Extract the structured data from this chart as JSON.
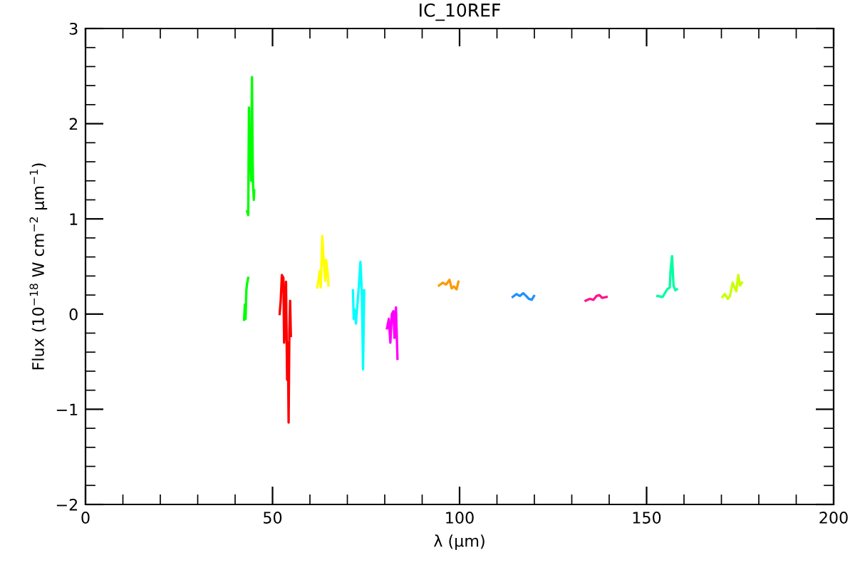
{
  "chart_data": {
    "type": "line",
    "title": "IC_10REF",
    "xlabel": "λ (μm)",
    "ylabel": "Flux (10$^{−18}$ W cm$^{−2}$ μm$^{−1}$)",
    "xlim": [
      0,
      200
    ],
    "ylim": [
      -2,
      3
    ],
    "xticks": [
      0,
      {
        "value": 10,
        "label": null
      },
      {
        "value": 20,
        "label": null
      },
      {
        "value": 30,
        "label": null
      },
      {
        "value": 40,
        "label": null
      },
      50,
      {
        "value": 60,
        "label": null
      },
      {
        "value": 70,
        "label": null
      },
      {
        "value": 80,
        "label": null
      },
      {
        "value": 90,
        "label": null
      },
      100,
      {
        "value": 110,
        "label": null
      },
      {
        "value": 120,
        "label": null
      },
      {
        "value": 130,
        "label": null
      },
      {
        "value": 140,
        "label": null
      },
      150,
      {
        "value": 160,
        "label": null
      },
      {
        "value": 170,
        "label": null
      },
      {
        "value": 180,
        "label": null
      },
      {
        "value": 190,
        "label": null
      },
      200
    ],
    "yticks": [
      {
        "value": -2,
        "label": "−2"
      },
      {
        "value": -1.8,
        "label": null
      },
      {
        "value": -1.6,
        "label": null
      },
      {
        "value": -1.4,
        "label": null
      },
      {
        "value": -1.2,
        "label": null
      },
      {
        "value": -1,
        "label": "−1"
      },
      {
        "value": -0.8,
        "label": null
      },
      {
        "value": -0.6,
        "label": null
      },
      {
        "value": -0.4,
        "label": null
      },
      {
        "value": -0.2,
        "label": null
      },
      0,
      {
        "value": 0.2,
        "label": null
      },
      {
        "value": 0.4,
        "label": null
      },
      {
        "value": 0.6,
        "label": null
      },
      {
        "value": 0.8,
        "label": null
      },
      1,
      {
        "value": 1.2,
        "label": null
      },
      {
        "value": 1.4,
        "label": null
      },
      {
        "value": 1.6,
        "label": null
      },
      {
        "value": 1.8,
        "label": null
      },
      2,
      {
        "value": 2.2,
        "label": null
      },
      {
        "value": 2.4,
        "label": null
      },
      {
        "value": 2.6,
        "label": null
      },
      {
        "value": 2.8,
        "label": null
      },
      3
    ],
    "grid": false,
    "marker": "none",
    "line_style": "solid",
    "series": [
      {
        "color": "#00ff00",
        "x": [
          43.2,
          43.5,
          43.7,
          43.9,
          44.1,
          44.3,
          44.5,
          44.7,
          44.8,
          45.0,
          45.1
        ],
        "values": [
          1.08,
          1.04,
          2.17,
          1.5,
          1.77,
          1.4,
          2.49,
          1.6,
          1.35,
          1.2,
          1.3
        ]
      },
      {
        "color": "#00ff00",
        "x": [
          42.4,
          42.6,
          42.8,
          43.0,
          43.2,
          43.5
        ],
        "values": [
          -0.06,
          0.1,
          -0.05,
          0.25,
          0.32,
          0.38
        ]
      },
      {
        "color": "#ff0000",
        "x": [
          51.9,
          52.2,
          52.5,
          52.9,
          53.1,
          53.4,
          53.6,
          53.9,
          54.1,
          54.3,
          54.5,
          54.7,
          54.9
        ],
        "values": [
          0.0,
          0.15,
          0.41,
          0.38,
          -0.3,
          0.05,
          0.34,
          -0.69,
          -0.3,
          -1.14,
          -0.2,
          0.14,
          -0.23
        ]
      },
      {
        "color": "#ffff00",
        "x": [
          62.0,
          62.6,
          62.9,
          63.3,
          63.7,
          64.1,
          64.3,
          64.7,
          64.96
        ],
        "values": [
          0.28,
          0.45,
          0.28,
          0.82,
          0.55,
          0.35,
          0.57,
          0.45,
          0.3
        ]
      },
      {
        "color": "#00ffff",
        "x": [
          71.5,
          71.7,
          71.9,
          72.3,
          72.7,
          73.1,
          73.5,
          73.9,
          74.2,
          74.5
        ],
        "values": [
          0.25,
          -0.05,
          0.05,
          -0.1,
          0.1,
          0.3,
          0.55,
          0.2,
          -0.58,
          0.25
        ]
      },
      {
        "color": "#ff00ff",
        "x": [
          80.6,
          81.1,
          81.5,
          81.9,
          82.3,
          82.6,
          83.0,
          83.4
        ],
        "values": [
          -0.15,
          -0.05,
          -0.3,
          0.0,
          0.03,
          -0.25,
          0.07,
          -0.47
        ]
      },
      {
        "color": "#ff9900",
        "x": [
          94.5,
          95.5,
          96.4,
          97.3,
          97.9,
          98.5,
          99.2,
          99.7
        ],
        "values": [
          0.3,
          0.33,
          0.31,
          0.36,
          0.27,
          0.29,
          0.26,
          0.34
        ]
      },
      {
        "color": "#1e90ff",
        "x": [
          114.2,
          115.2,
          116.1,
          117.0,
          117.8,
          118.5,
          119.3,
          119.9
        ],
        "values": [
          0.18,
          0.21,
          0.19,
          0.22,
          0.19,
          0.16,
          0.15,
          0.19
        ]
      },
      {
        "color": "#ff1493",
        "x": [
          133.7,
          134.8,
          135.8,
          136.6,
          137.4,
          138.1,
          139.3
        ],
        "values": [
          0.14,
          0.16,
          0.15,
          0.19,
          0.2,
          0.17,
          0.18
        ]
      },
      {
        "color": "#00ffa0",
        "x": [
          152.9,
          154.3,
          155.5,
          156.2,
          156.4,
          156.8,
          157.2,
          157.7,
          158.1
        ],
        "values": [
          0.19,
          0.18,
          0.26,
          0.28,
          0.45,
          0.61,
          0.3,
          0.25,
          0.26
        ]
      },
      {
        "color": "#c8ff00",
        "x": [
          170.3,
          170.9,
          171.7,
          172.3,
          173.0,
          173.5,
          174.0,
          174.5,
          175.0,
          175.5
        ],
        "values": [
          0.18,
          0.21,
          0.16,
          0.19,
          0.33,
          0.28,
          0.24,
          0.41,
          0.3,
          0.33
        ]
      }
    ]
  }
}
